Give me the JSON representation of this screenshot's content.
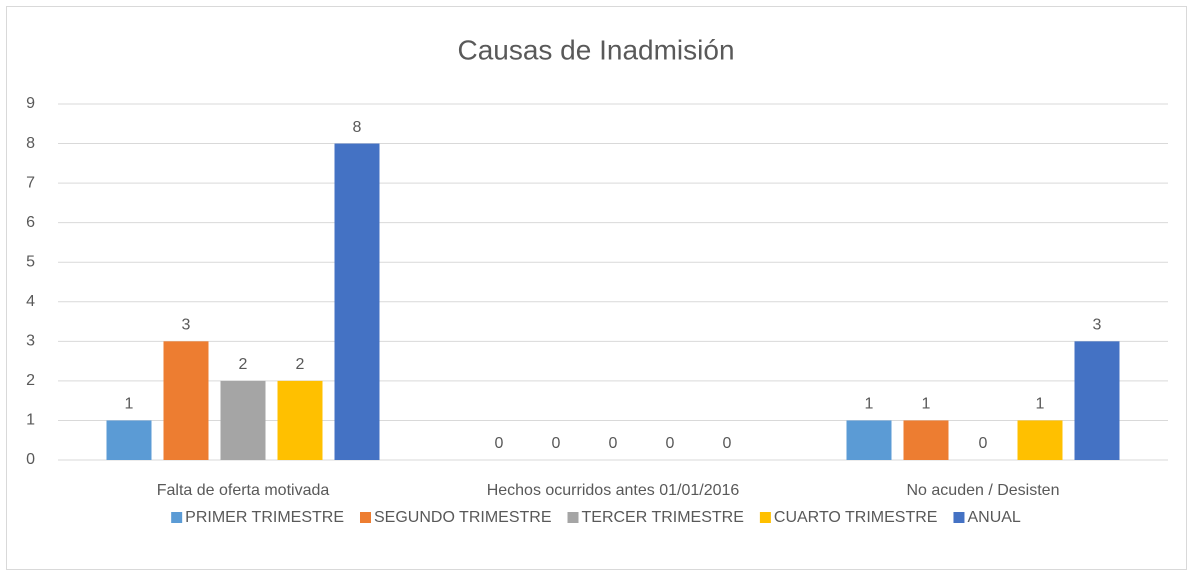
{
  "chart_data": {
    "type": "bar",
    "title": "Causas de Inadmisión",
    "categories": [
      "Falta de oferta motivada",
      "Hechos ocurridos antes 01/01/2016",
      "No acuden / Desisten"
    ],
    "series": [
      {
        "name": "PRIMER TRIMESTRE",
        "color": "#5b9bd5",
        "values": [
          1,
          0,
          1
        ]
      },
      {
        "name": "SEGUNDO TRIMESTRE",
        "color": "#ed7d31",
        "values": [
          3,
          0,
          1
        ]
      },
      {
        "name": "TERCER TRIMESTRE",
        "color": "#a5a5a5",
        "values": [
          2,
          0,
          0
        ]
      },
      {
        "name": "CUARTO TRIMESTRE",
        "color": "#ffc000",
        "values": [
          2,
          0,
          1
        ]
      },
      {
        "name": "ANUAL",
        "color": "#4472c4",
        "values": [
          8,
          0,
          3
        ]
      }
    ],
    "ylim": [
      0,
      9
    ],
    "yticks": [
      0,
      1,
      2,
      3,
      4,
      5,
      6,
      7,
      8,
      9
    ],
    "grid": true,
    "legend": "bottom"
  }
}
